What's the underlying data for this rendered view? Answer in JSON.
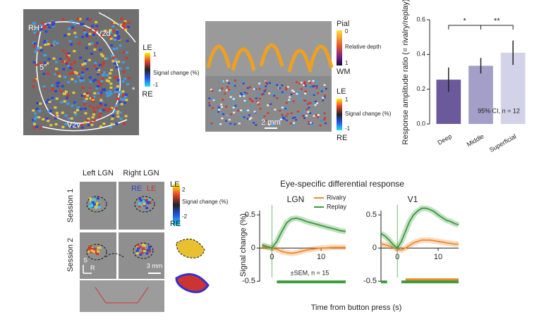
{
  "chart_data": [
    {
      "type": "bar",
      "categories": [
        "Deep",
        "Middle",
        "Superficial"
      ],
      "values": [
        0.255,
        0.335,
        0.41
      ],
      "errors": [
        0.07,
        0.045,
        0.07
      ],
      "colors": [
        "#6a5a9c",
        "#a39fc8",
        "#d2d2e8"
      ],
      "ylabel": "Response amplitude ratio (= rivalry/replay)",
      "ylim": [
        0,
        0.6
      ],
      "yticks": [
        {
          "value": 0,
          "label": "0.0"
        },
        0.2,
        0.4,
        0.6
      ],
      "annotation": "95% CI, n = 12",
      "significance": [
        {
          "label": "*",
          "between": [
            0,
            1
          ]
        },
        {
          "label": "**",
          "between": [
            1,
            2
          ]
        }
      ]
    },
    {
      "type": "line",
      "title": "LGN",
      "x": [
        -2,
        -1,
        0,
        1,
        2,
        3,
        4,
        5,
        6,
        7,
        8,
        9,
        10,
        11,
        12,
        13,
        14,
        15
      ],
      "series": [
        {
          "name": "Rivalry",
          "color": "#f0892a",
          "values": [
            0.02,
            0.01,
            0,
            -0.02,
            -0.05,
            -0.07,
            -0.08,
            -0.07,
            -0.05,
            -0.03,
            -0.02,
            -0.01,
            0,
            0,
            0.01,
            0.01,
            0.01,
            0.01
          ]
        },
        {
          "name": "Replay",
          "color": "#3b9a3b",
          "values": [
            0.05,
            0.02,
            0,
            0.1,
            0.25,
            0.38,
            0.44,
            0.45,
            0.43,
            0.4,
            0.38,
            0.36,
            0.34,
            0.32,
            0.3,
            0.28,
            0.26,
            0.25
          ]
        }
      ],
      "xlim": [
        -2.5,
        15
      ],
      "xticks": [
        0,
        10
      ],
      "ylim": [
        -0.55,
        0.65
      ],
      "yticks": [
        -0.5,
        0,
        0.5
      ],
      "annotation": "±SEM, n = 15",
      "legend": "upper right",
      "sig_bars": [
        {
          "color": "#3b9a3b",
          "x": [
            1,
            15
          ]
        }
      ]
    },
    {
      "type": "line",
      "title": "V1",
      "x": [
        -4,
        -3,
        -2,
        -1,
        0,
        1,
        2,
        3,
        4,
        5,
        6,
        7,
        8,
        9,
        10,
        11,
        12,
        13,
        14,
        15
      ],
      "series": [
        {
          "name": "Rivalry",
          "color": "#f0892a",
          "values": [
            0.06,
            0.05,
            0.03,
            0.01,
            -0.02,
            -0.03,
            0,
            0.04,
            0.08,
            0.1,
            0.12,
            0.12,
            0.12,
            0.11,
            0.1,
            0.09,
            0.08,
            0.07,
            0.06,
            0.06
          ]
        },
        {
          "name": "Replay",
          "color": "#3b9a3b",
          "values": [
            0.22,
            0.18,
            0.12,
            0.05,
            0,
            0.1,
            0.25,
            0.4,
            0.5,
            0.56,
            0.6,
            0.6,
            0.58,
            0.55,
            0.5,
            0.46,
            0.42,
            0.4,
            0.37,
            0.35
          ]
        }
      ],
      "xlim": [
        -4,
        15
      ],
      "xticks": [
        0,
        10
      ],
      "ylim": [
        -0.55,
        0.65
      ],
      "yticks": [
        -0.5,
        0,
        0.5
      ],
      "sig_bars": [
        {
          "color": "#f0892a",
          "x": [
            2,
            15
          ]
        },
        {
          "color": "#3b9a3b",
          "x": [
            -4,
            -2.5
          ]
        },
        {
          "color": "#3b9a3b",
          "x": [
            1,
            15
          ]
        }
      ]
    }
  ],
  "figure": {
    "title": "Eye-specific differential response",
    "ylabel": "Signal change (%)",
    "xlabel": "Time from button press (s)"
  },
  "panel_a": {
    "hemisphere": "RH",
    "v2d": "V2d",
    "v2v": "V2v",
    "eccentricity": "5°",
    "marker": "*",
    "colorbar": {
      "top": "LE",
      "max": "1",
      "label": "Signal change (%)",
      "min": "-1",
      "bottom": "RE"
    }
  },
  "panel_b": {
    "depth_bar": {
      "top": "Pial",
      "max": "0",
      "label": "Relative depth",
      "min": "1",
      "bottom": "WM"
    },
    "colorbar": {
      "top": "LE",
      "max": "1",
      "label": "Signal change (%)",
      "min": "-1",
      "bottom": "RE"
    },
    "scale": "2 mm"
  },
  "panel_c": {
    "columns": [
      "Left LGN",
      "Right LGN"
    ],
    "rows": [
      "Session 1",
      "Session 2"
    ],
    "re": "RE",
    "le": "LE",
    "colorbar": {
      "top": "LE",
      "max": "2",
      "label": "Signal change (%)",
      "min": "-2",
      "bottom": "RE"
    },
    "superior": "S",
    "right": "R",
    "scale": "3 mm"
  }
}
